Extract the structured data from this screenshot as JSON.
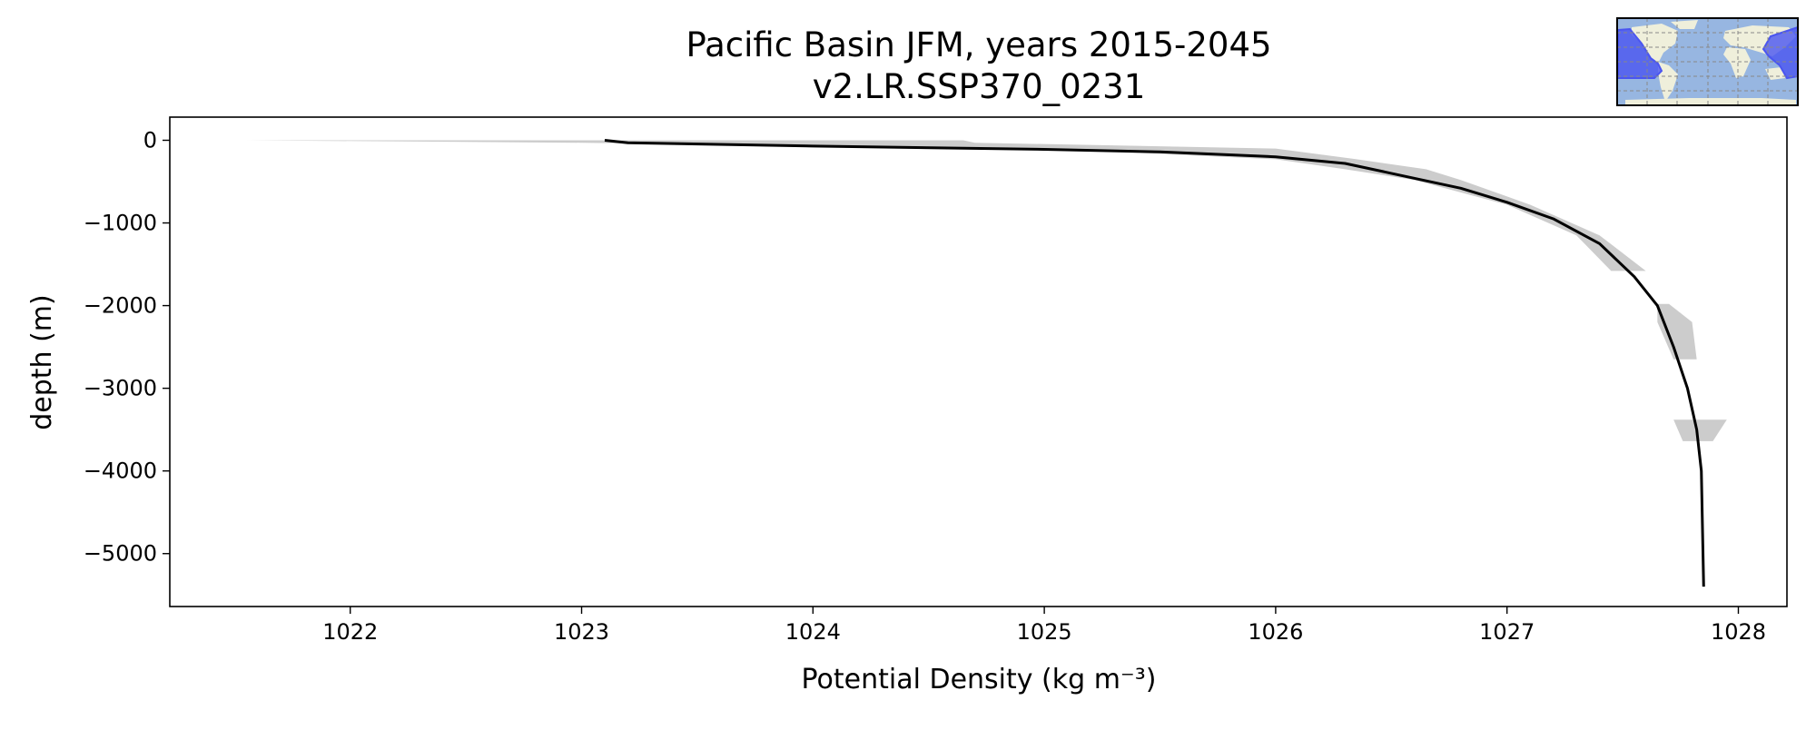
{
  "chart_data": {
    "type": "line",
    "title": "Pacific Basin JFM, years 2015-2045",
    "subtitle": "v2.LR.SSP370_0231",
    "xlabel": "Potential Density (kg m⁻³)",
    "ylabel": "depth (m)",
    "xlim": [
      1021.22,
      1028.21
    ],
    "ylim": [
      -5640,
      280
    ],
    "xticks": [
      1022,
      1023,
      1024,
      1025,
      1026,
      1027,
      1028
    ],
    "xtick_labels": [
      "1022",
      "1023",
      "1024",
      "1025",
      "1026",
      "1027",
      "1028"
    ],
    "yticks": [
      0,
      -1000,
      -2000,
      -3000,
      -4000,
      -5000
    ],
    "ytick_labels": [
      "0",
      "−1000",
      "−2000",
      "−3000",
      "−4000",
      "−5000"
    ],
    "grid": false,
    "line_color": "#000000",
    "band_color": "#cccccc",
    "series": [
      {
        "x": [
          1023.1,
          1023.2,
          1024.0,
          1025.0,
          1025.5,
          1026.0,
          1026.3,
          1026.5,
          1026.8,
          1027.0,
          1027.2,
          1027.4,
          1027.55,
          1027.65,
          1027.72,
          1027.78,
          1027.82,
          1027.84,
          1027.85
        ],
        "y": [
          0,
          -30,
          -70,
          -110,
          -140,
          -200,
          -280,
          -400,
          -580,
          -750,
          -950,
          -1250,
          -1650,
          -2000,
          -2500,
          -3000,
          -3500,
          -4000,
          -5400
        ]
      }
    ],
    "bands": [
      {
        "depth": [
          0,
          -30,
          -100,
          -230,
          -350,
          -480,
          -780,
          -1150,
          -1580
        ],
        "min": [
          1021.55,
          1023.0,
          1025.0,
          1026.0,
          1026.3,
          1026.6,
          1027.0,
          1027.3,
          1027.45
        ],
        "max": [
          1024.65,
          1024.7,
          1026.0,
          1026.35,
          1026.65,
          1026.8,
          1027.1,
          1027.4,
          1027.6
        ]
      },
      {
        "depth": [
          -1980,
          -2200,
          -2650
        ],
        "min": [
          1027.65,
          1027.65,
          1027.72
        ],
        "max": [
          1027.7,
          1027.8,
          1027.82
        ]
      },
      {
        "depth": [
          -3380,
          -3640
        ],
        "min": [
          1027.72,
          1027.76
        ],
        "max": [
          1027.95,
          1027.89
        ]
      }
    ]
  },
  "inset_map": {
    "ocean_color": "#97b6e1",
    "land_color": "#efefdb",
    "region_color": "#4a55f0"
  }
}
